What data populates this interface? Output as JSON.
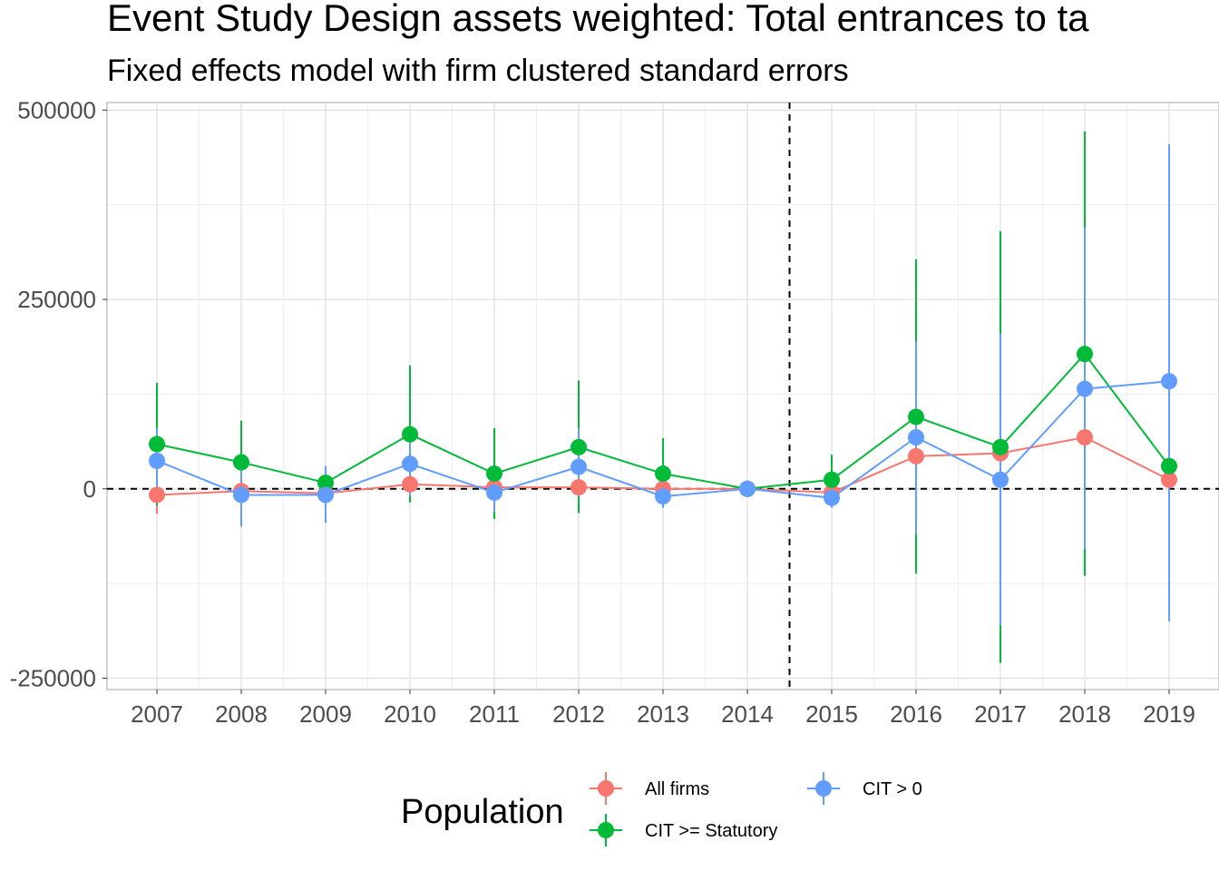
{
  "chart_data": {
    "type": "line",
    "title": "Event Study Design assets weighted: Total entrances to ta",
    "subtitle": "Fixed effects model with firm clustered standard errors",
    "xlabel": "",
    "ylabel": "",
    "categories": [
      "2007",
      "2008",
      "2009",
      "2010",
      "2011",
      "2012",
      "2013",
      "2014",
      "2015",
      "2016",
      "2017",
      "2018",
      "2019"
    ],
    "yticks": [
      -250000,
      0,
      250000,
      500000
    ],
    "yticklabels": [
      "-250000",
      "0",
      "250000",
      "500000"
    ],
    "ylim": [
      -265000,
      510000
    ],
    "grid": true,
    "reference_lines": {
      "hline": 0,
      "vline_between": [
        "2014",
        "2015"
      ]
    },
    "legend": {
      "title": "Population",
      "position": "bottom"
    },
    "series": [
      {
        "name": "All firms",
        "color": "#F8766D",
        "values": [
          -8000,
          -3000,
          -6000,
          6000,
          2000,
          2000,
          0,
          0,
          -5000,
          43000,
          47000,
          68000,
          12000
        ],
        "lower": [
          -33000,
          -15000,
          -15000,
          -5000,
          -5000,
          -5000,
          -5000,
          0,
          -15000,
          20000,
          25000,
          40000,
          -5000
        ],
        "upper": [
          18000,
          10000,
          5000,
          17000,
          10000,
          10000,
          5000,
          0,
          5000,
          65000,
          70000,
          95000,
          30000
        ]
      },
      {
        "name": "CIT >= Statutory",
        "color": "#00BA38",
        "values": [
          59000,
          35000,
          8000,
          72000,
          20000,
          55000,
          20000,
          0,
          12000,
          95000,
          55000,
          178000,
          30000
        ],
        "lower": [
          -22000,
          -18000,
          -5000,
          -18000,
          -40000,
          -32000,
          -25000,
          0,
          -20000,
          -112000,
          -230000,
          -115000,
          -15000
        ],
        "upper": [
          140000,
          90000,
          22000,
          163000,
          80000,
          143000,
          67000,
          0,
          45000,
          303000,
          340000,
          472000,
          75000
        ]
      },
      {
        "name": "CIT > 0",
        "color": "#619CFF",
        "values": [
          37000,
          -8000,
          -8000,
          33000,
          -5000,
          29000,
          -10000,
          0,
          -12000,
          68000,
          12000,
          132000,
          142000
        ],
        "lower": [
          -5000,
          -50000,
          -45000,
          -10000,
          -30000,
          -10000,
          -25000,
          0,
          -25000,
          -60000,
          -180000,
          -80000,
          -175000
        ],
        "upper": [
          80000,
          35000,
          30000,
          75000,
          20000,
          80000,
          10000,
          0,
          5000,
          195000,
          205000,
          345000,
          455000
        ]
      }
    ]
  }
}
